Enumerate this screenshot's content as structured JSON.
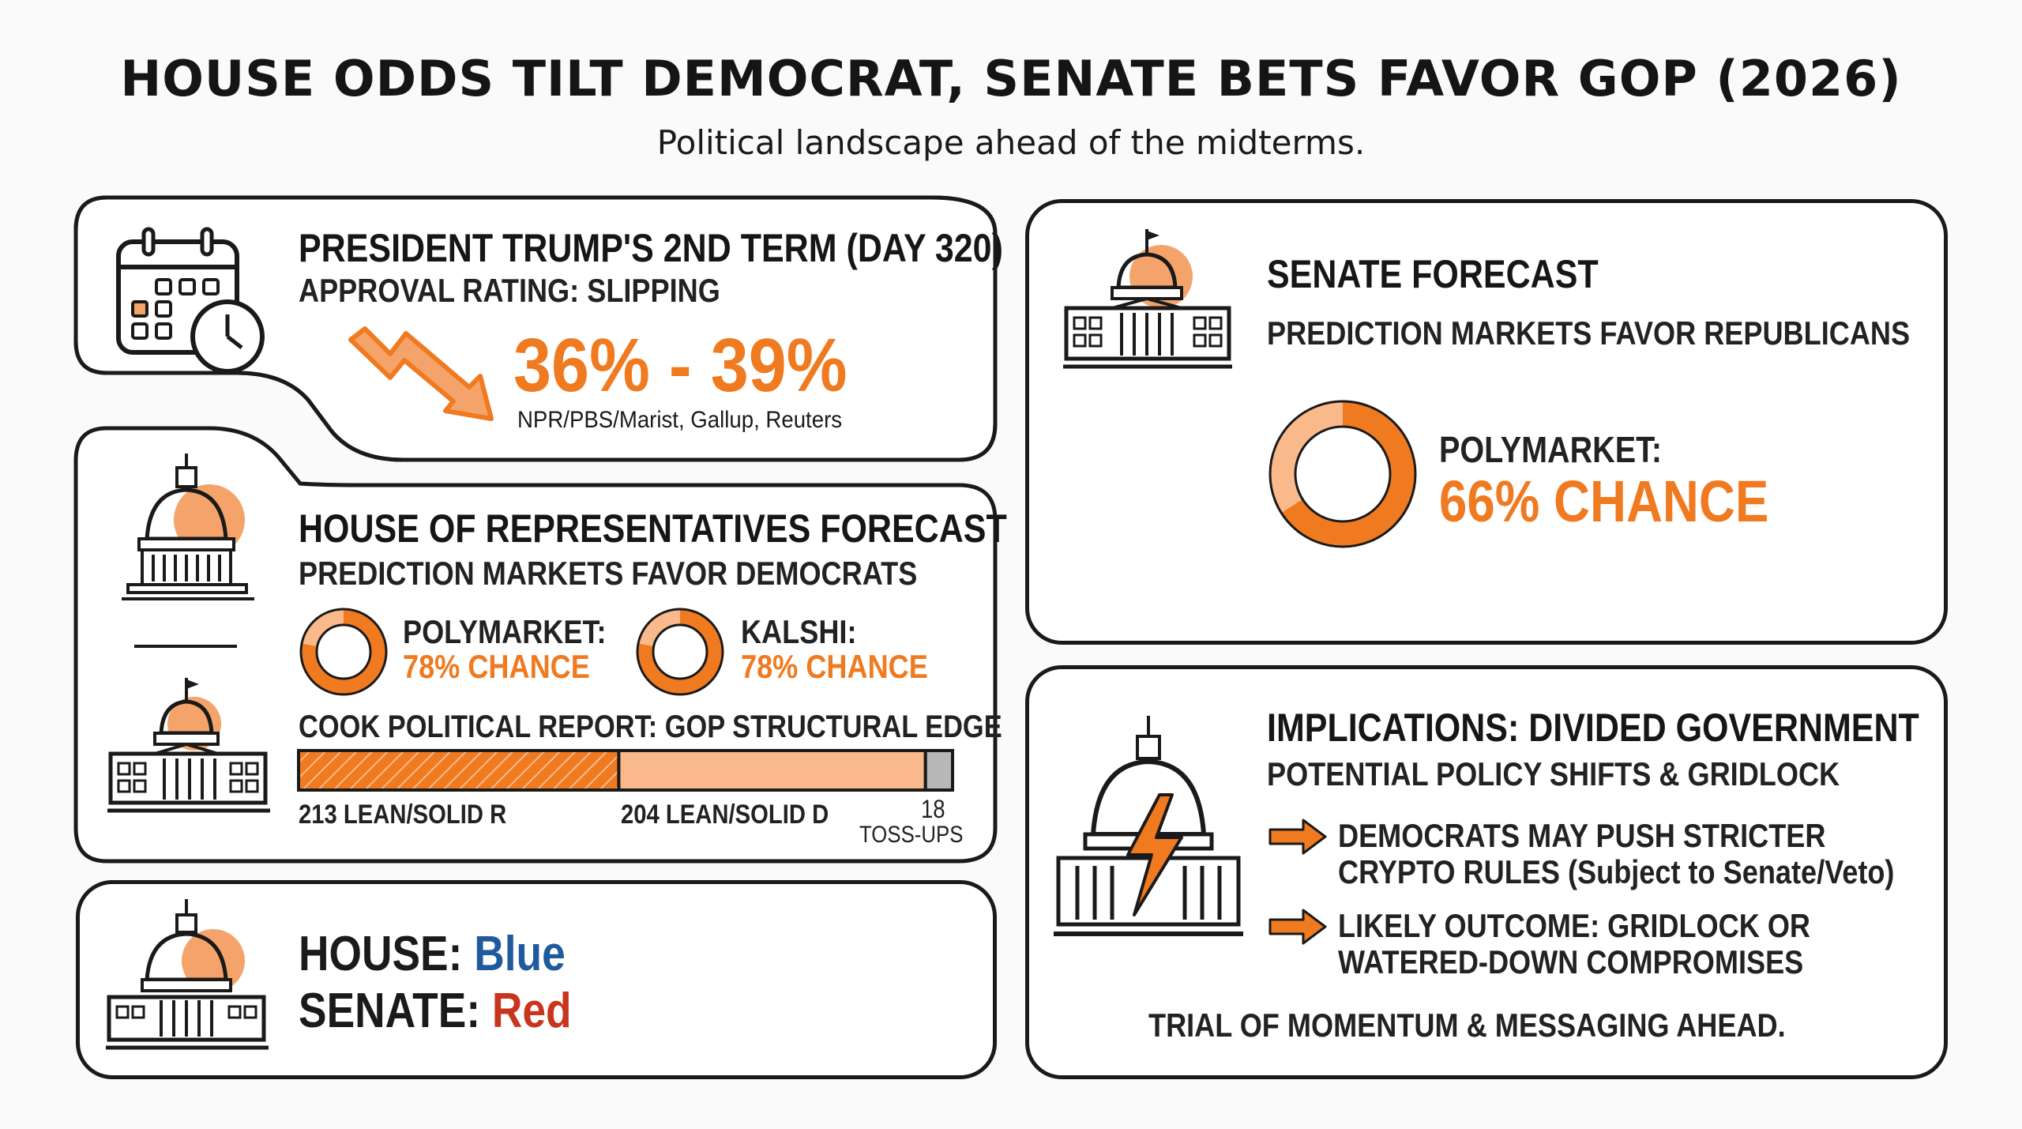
{
  "title": "HOUSE ODDS TILT DEMOCRAT, SENATE BETS FAVOR GOP (2026)",
  "subtitle": "Political landscape ahead of the midterms.",
  "colors": {
    "accent": "#f07a20",
    "accent_light": "#f9b98a",
    "blue": "#1f5a9c",
    "red": "#c9341c",
    "gray": "#b8b8b8"
  },
  "approval": {
    "heading": "PRESIDENT TRUMP'S 2ND TERM (DAY 320)",
    "subheading": "APPROVAL RATING: SLIPPING",
    "range": "36% - 39%",
    "sources": "NPR/PBS/Marist, Gallup, Reuters",
    "icon": "calendar-clock-icon"
  },
  "house": {
    "heading": "HOUSE OF REPRESENTATIVES FORECAST",
    "subheading": "PREDICTION MARKETS FAVOR DEMOCRATS",
    "markets": [
      {
        "name": "POLYMARKET:",
        "chance": "78% CHANCE",
        "value": 0.78
      },
      {
        "name": "KALSHI:",
        "chance": "78% CHANCE",
        "value": 0.78
      }
    ],
    "cook_label": "COOK POLITICAL REPORT: GOP STRUCTURAL EDGE",
    "bar": {
      "r": 213,
      "d": 204,
      "toss": 18
    },
    "label_r": "213 LEAN/SOLID R",
    "label_d": "204 LEAN/SOLID D",
    "label_toss_num": "18",
    "label_toss_text": "TOSS-UPS"
  },
  "summary": {
    "house_label": "HOUSE:",
    "house_value": "Blue",
    "senate_label": "SENATE:",
    "senate_value": "Red"
  },
  "senate": {
    "heading": "SENATE FORECAST",
    "subheading": "PREDICTION MARKETS FAVOR REPUBLICANS",
    "market_name": "POLYMARKET:",
    "market_chance": "66% CHANCE",
    "value": 0.66
  },
  "implications": {
    "heading": "IMPLICATIONS: DIVIDED GOVERNMENT",
    "subheading": "POTENTIAL POLICY SHIFTS & GRIDLOCK",
    "bullets": [
      {
        "line1": "DEMOCRATS MAY PUSH STRICTER",
        "line2": "CRYPTO RULES (Subject to Senate/Veto)"
      },
      {
        "line1": "LIKELY OUTCOME: GRIDLOCK OR",
        "line2": "WATERED-DOWN COMPROMISES"
      }
    ],
    "footer": "TRIAL OF MOMENTUM & MESSAGING AHEAD."
  }
}
